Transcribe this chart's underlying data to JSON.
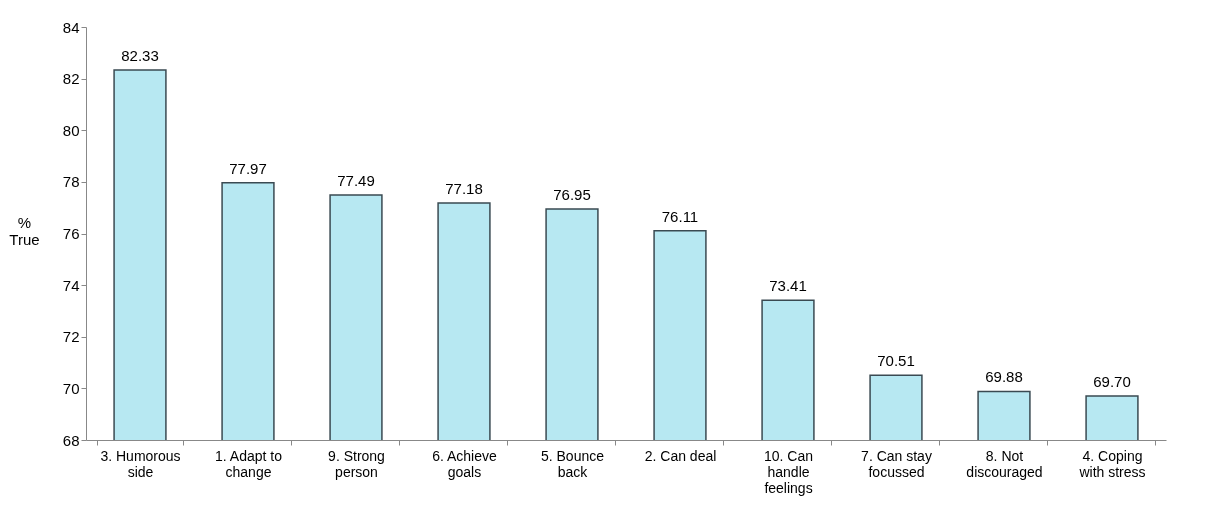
{
  "chart_data": {
    "type": "bar",
    "ylabel": "% True",
    "categories": [
      "3. Humorous side",
      "1. Adapt to change",
      "9. Strong person",
      "6. Achieve goals",
      "5. Bounce back",
      "2. Can deal",
      "10. Can handle feelings",
      "7. Can stay focussed",
      "8. Not discouraged",
      "4. Coping with stress"
    ],
    "values": [
      82.33,
      77.97,
      77.49,
      77.18,
      76.95,
      76.11,
      73.41,
      70.51,
      69.88,
      69.7
    ],
    "value_labels": [
      "82.33",
      "77.97",
      "77.49",
      "77.18",
      "76.95",
      "76.11",
      "73.41",
      "70.51",
      "69.88",
      "69.70"
    ],
    "color": "#b7e8f2",
    "ylim": [
      68,
      84
    ],
    "yticks": [
      68,
      70,
      72,
      74,
      76,
      78,
      80,
      82,
      84
    ],
    "grid": false
  }
}
